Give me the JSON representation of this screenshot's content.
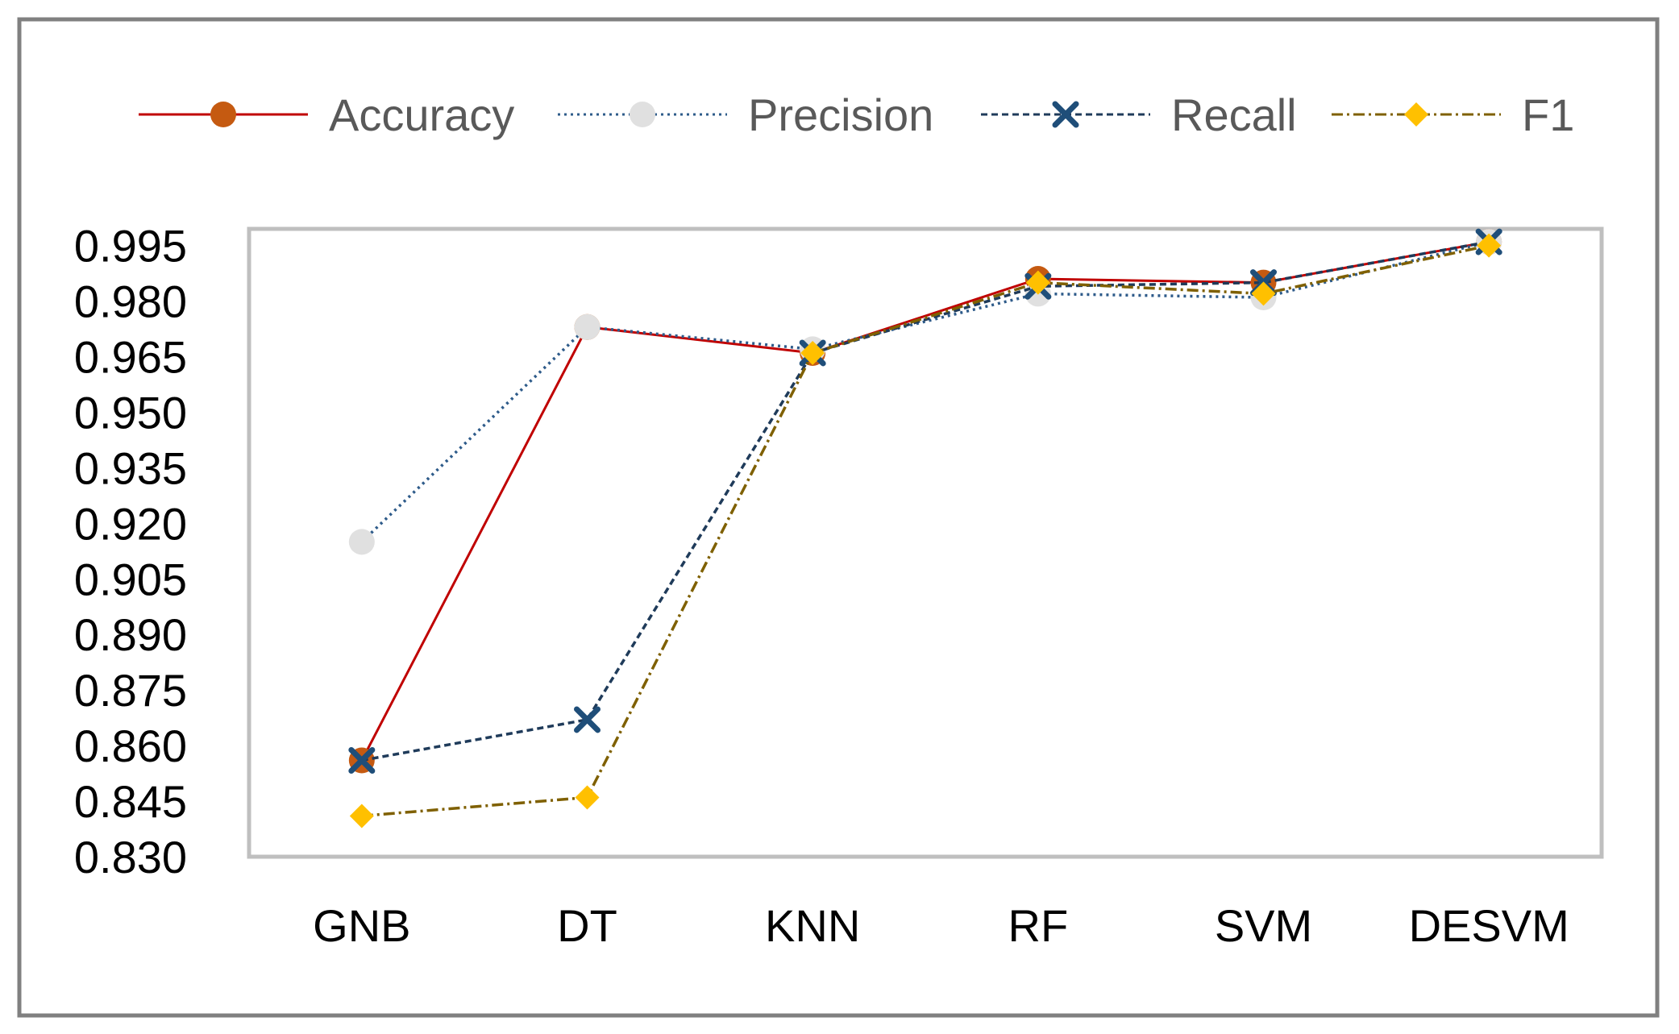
{
  "chart_data": {
    "type": "line",
    "title": "",
    "xlabel": "",
    "ylabel": "",
    "categories": [
      "GNB",
      "DT",
      "KNN",
      "RF",
      "SVM",
      "DESVM"
    ],
    "ylim": [
      0.83,
      0.9995
    ],
    "yticks": [
      "0.995",
      "0.980",
      "0.965",
      "0.950",
      "0.935",
      "0.920",
      "0.905",
      "0.890",
      "0.875",
      "0.860",
      "0.845",
      "0.830"
    ],
    "grid": false,
    "legend_position": "top",
    "series": [
      {
        "name": "Accuracy",
        "values": [
          0.856,
          0.973,
          0.966,
          0.986,
          0.985,
          0.996
        ],
        "color": "#C00000",
        "marker": "circle",
        "marker_color": "#C55A11",
        "dash": "solid"
      },
      {
        "name": "Precision",
        "values": [
          0.915,
          0.973,
          0.967,
          0.982,
          0.981,
          0.996
        ],
        "color": "#2E5B8A",
        "marker": "circle",
        "marker_color": "#E0E0E0",
        "dash": "dotted"
      },
      {
        "name": "Recall",
        "values": [
          0.856,
          0.867,
          0.966,
          0.984,
          0.985,
          0.996
        ],
        "color": "#1F3B5A",
        "marker": "x",
        "marker_color": "#1F4E79",
        "dash": "dashed"
      },
      {
        "name": "F1",
        "values": [
          0.841,
          0.846,
          0.966,
          0.985,
          0.982,
          0.995
        ],
        "color": "#7F6000",
        "marker": "diamond",
        "marker_color": "#FFC000",
        "dash": "dashdot"
      }
    ]
  }
}
